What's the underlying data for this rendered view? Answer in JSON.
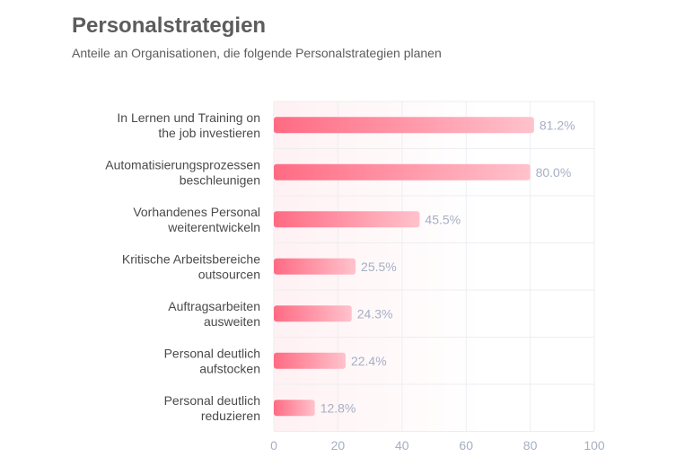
{
  "chart_data": {
    "type": "bar",
    "orientation": "horizontal",
    "title": "Personalstrategien",
    "subtitle": "Anteile an Organisationen, die folgende Personalstrategien planen",
    "categories": [
      [
        "In Lernen und Training on",
        "the job investieren"
      ],
      [
        "Automatisierungsprozessen",
        "beschleunigen"
      ],
      [
        "Vorhandenes Personal",
        "weiterentwickeln"
      ],
      [
        "Kritische Arbeitsbereiche",
        "outsourcen"
      ],
      [
        "Auftragsarbeiten",
        "ausweiten"
      ],
      [
        "Personal deutlich",
        "aufstocken"
      ],
      [
        "Personal deutlich",
        "reduzieren"
      ]
    ],
    "values": [
      81.2,
      80.0,
      45.5,
      25.5,
      24.3,
      22.4,
      12.8
    ],
    "value_labels": [
      "81.2%",
      "80.0%",
      "45.5%",
      "25.5%",
      "24.3%",
      "22.4%",
      "12.8%"
    ],
    "xlim": [
      0,
      100
    ],
    "xticks": [
      0,
      20,
      40,
      60,
      80,
      100
    ],
    "grid": true,
    "legend": "none",
    "colors": {
      "bar_start": "#ff6b83",
      "bar_end": "#ffc2cc",
      "band": "#fff1f3"
    }
  }
}
